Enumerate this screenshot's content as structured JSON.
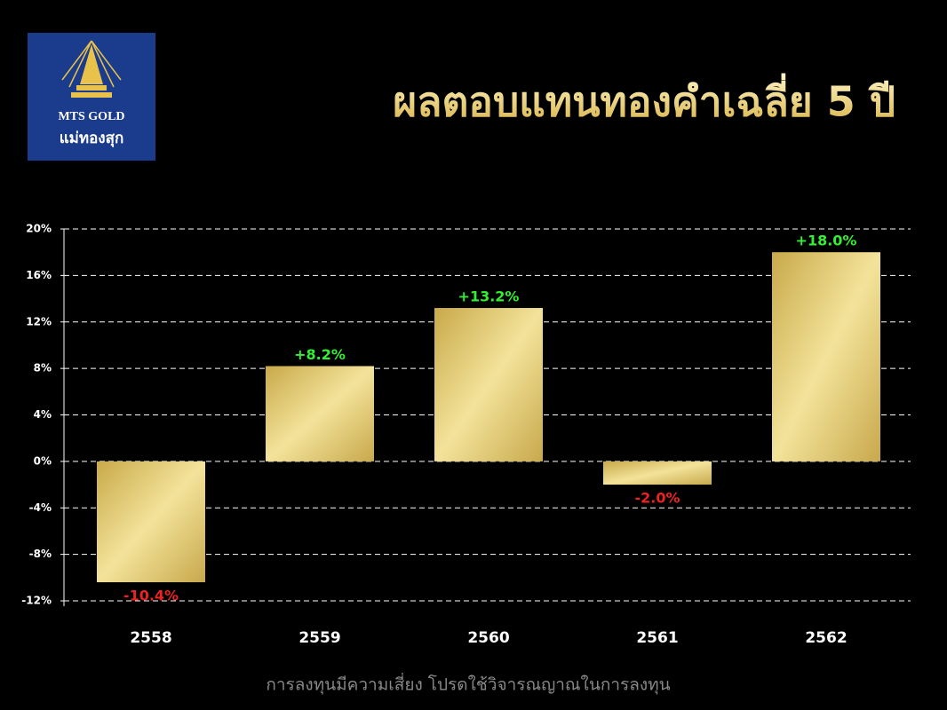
{
  "logo": {
    "brand": "MTS GOLD",
    "name": "แม่ทองสุก"
  },
  "chart_data": {
    "type": "bar",
    "title": "ผลตอบแทนทองคำเฉลี่ย 5 ปี",
    "categories": [
      "2558",
      "2559",
      "2560",
      "2561",
      "2562"
    ],
    "values": [
      -10.4,
      8.2,
      13.2,
      -2.0,
      18.0
    ],
    "value_labels": [
      "-10.4%",
      "+8.2%",
      "+13.2%",
      "-2.0%",
      "+18.0%"
    ],
    "color": "#e6cc6e",
    "positive_label_color": "#33ee33",
    "negative_label_color": "#ee2222",
    "ylim": [
      -12,
      20
    ],
    "yticks": [
      {
        "value": 20,
        "label": "20%"
      },
      {
        "value": 16,
        "label": "16%"
      },
      {
        "value": 12,
        "label": "12%"
      },
      {
        "value": 8,
        "label": "8%"
      },
      {
        "value": 4,
        "label": "4%"
      },
      {
        "value": 0,
        "label": "0%"
      },
      {
        "value": -4,
        "label": "-4%"
      },
      {
        "value": -8,
        "label": "-8%"
      },
      {
        "value": -12,
        "label": "-12%"
      }
    ],
    "grid": true
  },
  "footer": "การลงทุนมีความเสี่ยง โปรดใช้วิจารณญาณในการลงทุน"
}
